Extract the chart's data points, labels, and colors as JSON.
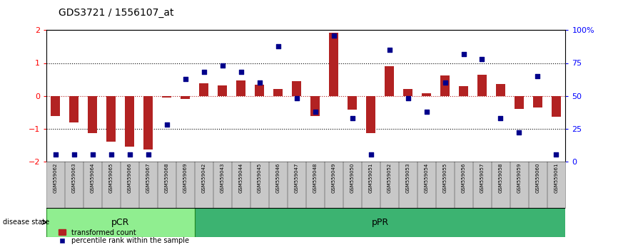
{
  "title": "GDS3721 / 1556107_at",
  "samples": [
    "GSM559062",
    "GSM559063",
    "GSM559064",
    "GSM559065",
    "GSM559066",
    "GSM559067",
    "GSM559068",
    "GSM559069",
    "GSM559042",
    "GSM559043",
    "GSM559044",
    "GSM559045",
    "GSM559046",
    "GSM559047",
    "GSM559048",
    "GSM559049",
    "GSM559050",
    "GSM559051",
    "GSM559052",
    "GSM559053",
    "GSM559054",
    "GSM559055",
    "GSM559056",
    "GSM559057",
    "GSM559058",
    "GSM559059",
    "GSM559060",
    "GSM559061"
  ],
  "bar_values": [
    -0.62,
    -0.82,
    -1.15,
    -1.4,
    -1.55,
    -1.65,
    -0.05,
    -0.1,
    0.38,
    0.32,
    0.47,
    0.33,
    0.2,
    0.45,
    -0.62,
    1.93,
    -0.42,
    -1.13,
    0.9,
    0.2,
    0.08,
    0.63,
    0.3,
    0.65,
    0.35,
    -0.4,
    -0.35,
    -0.65
  ],
  "percentile_values": [
    5,
    5,
    5,
    5,
    5,
    5,
    28,
    63,
    68,
    73,
    68,
    60,
    88,
    48,
    38,
    96,
    33,
    5,
    85,
    48,
    38,
    60,
    82,
    78,
    33,
    22,
    65,
    5
  ],
  "pcr_count": 8,
  "ppr_count": 20,
  "ylim_left": [
    -2.0,
    2.0
  ],
  "bar_color": "#B22222",
  "dot_color": "#00008B",
  "pcr_color": "#90EE90",
  "ppr_color": "#3CB371",
  "group_label_pcr": "pCR",
  "group_label_ppr": "pPR",
  "disease_state_label": "disease state",
  "legend_bar_label": "transformed count",
  "legend_dot_label": "percentile rank within the sample",
  "yticks_left": [
    -2,
    -1,
    0,
    1,
    2
  ],
  "yticks_right": [
    0,
    25,
    50,
    75,
    100
  ],
  "ytick_right_labels": [
    "0",
    "25",
    "50",
    "75",
    "100%"
  ]
}
